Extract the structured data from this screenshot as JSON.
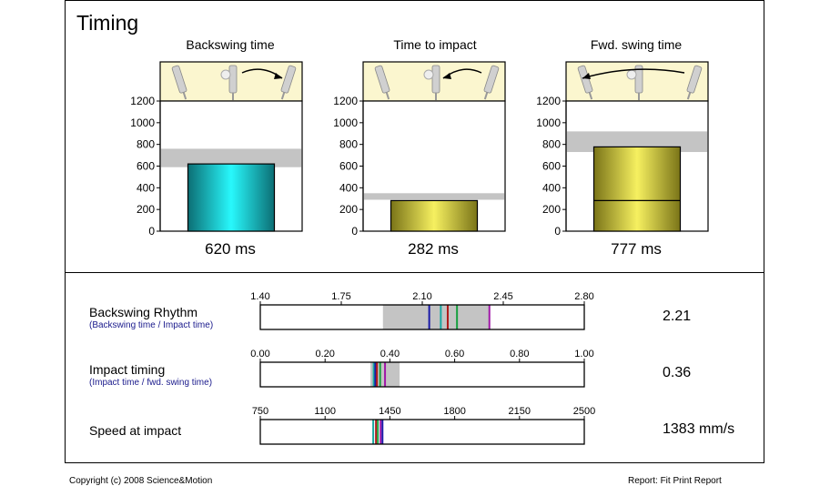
{
  "title": "Timing",
  "colors": {
    "teal": "#12c8cc",
    "olive": "#c9c23a",
    "band": "#c4c4c4",
    "icon_bg": "#fbf6cf",
    "blue": "#1a1aa8",
    "teal_line": "#1aa8a0",
    "red": "#b01818",
    "green": "#18a040",
    "purple": "#a018a8"
  },
  "chart_data": [
    {
      "type": "bar",
      "title": "Backswing time",
      "value_label": "620 ms",
      "values": [
        620
      ],
      "ylim": [
        0,
        1200
      ],
      "yticks": [
        "0",
        "200",
        "400",
        "600",
        "800",
        "1000",
        "1200"
      ],
      "normal_range": [
        590,
        760
      ],
      "icon": "backswing-icon",
      "fill": "teal"
    },
    {
      "type": "bar",
      "title": "Time to impact",
      "value_label": "282 ms",
      "values": [
        282
      ],
      "ylim": [
        0,
        1200
      ],
      "yticks": [
        "0",
        "200",
        "400",
        "600",
        "800",
        "1000",
        "1200"
      ],
      "normal_range": [
        290,
        350
      ],
      "icon": "impact-icon",
      "fill": "olive"
    },
    {
      "type": "bar",
      "title": "Fwd. swing time",
      "value_label": "777 ms",
      "values": [
        777
      ],
      "inner_line": 282,
      "ylim": [
        0,
        1200
      ],
      "yticks": [
        "0",
        "200",
        "400",
        "600",
        "800",
        "1000",
        "1200"
      ],
      "normal_range": [
        730,
        920
      ],
      "icon": "forward-swing-icon",
      "fill": "olive"
    },
    {
      "type": "scale",
      "label": "Backswing Rhythm",
      "sublabel": "(Backswing time / Impact time)",
      "value_label": "2.21",
      "xlim": [
        1.4,
        2.8
      ],
      "ticks": [
        1.4,
        1.75,
        2.1,
        2.45,
        2.8
      ],
      "tick_labels": [
        "1.40",
        "1.75",
        "2.10",
        "2.45",
        "2.80"
      ],
      "band": [
        1.93,
        2.39
      ],
      "markers": [
        {
          "value": 2.13,
          "color": "blue"
        },
        {
          "value": 2.18,
          "color": "teal_line"
        },
        {
          "value": 2.21,
          "color": "red"
        },
        {
          "value": 2.25,
          "color": "green"
        },
        {
          "value": 2.39,
          "color": "purple"
        }
      ]
    },
    {
      "type": "scale",
      "label": "Impact timing",
      "sublabel": "(Impact time / fwd. swing time)",
      "value_label": "0.36",
      "xlim": [
        0.0,
        1.0
      ],
      "ticks": [
        0.0,
        0.2,
        0.4,
        0.6,
        0.8,
        1.0
      ],
      "tick_labels": [
        "0.00",
        "0.20",
        "0.40",
        "0.60",
        "0.80",
        "1.00"
      ],
      "band": [
        0.34,
        0.43
      ],
      "markers": [
        {
          "value": 0.35,
          "color": "teal_line"
        },
        {
          "value": 0.355,
          "color": "blue"
        },
        {
          "value": 0.36,
          "color": "red"
        },
        {
          "value": 0.37,
          "color": "green"
        },
        {
          "value": 0.385,
          "color": "purple"
        }
      ]
    },
    {
      "type": "scale",
      "label": "Speed at impact",
      "sublabel": "",
      "value_label": "1383 mm/s",
      "xlim": [
        750,
        2500
      ],
      "ticks": [
        750,
        1100,
        1450,
        1800,
        2150,
        2500
      ],
      "tick_labels": [
        "750",
        "1100",
        "1450",
        "1800",
        "2150",
        "2500"
      ],
      "band": null,
      "markers": [
        {
          "value": 1360,
          "color": "teal_line"
        },
        {
          "value": 1375,
          "color": "red"
        },
        {
          "value": 1385,
          "color": "green"
        },
        {
          "value": 1400,
          "color": "purple"
        },
        {
          "value": 1410,
          "color": "blue"
        }
      ]
    }
  ],
  "footer": {
    "left": "Copyright (c) 2008 Science&Motion",
    "right": "Report: Fit Print Report"
  }
}
